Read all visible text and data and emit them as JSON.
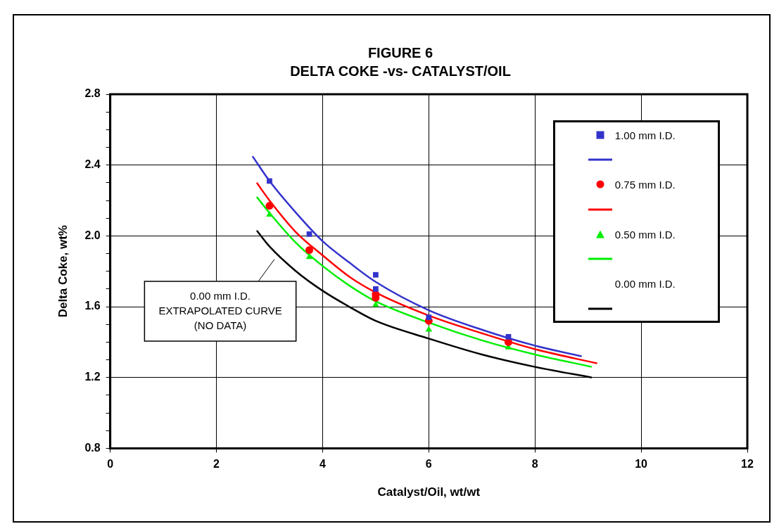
{
  "chart_data": {
    "type": "scatter",
    "title": "FIGURE 6",
    "subtitle": "DELTA COKE -vs- CATALYST/OIL",
    "xlabel": "Catalyst/Oil, wt/wt",
    "ylabel": "Delta Coke, wt%",
    "xlim": [
      0,
      12
    ],
    "xticks": [
      0,
      2,
      4,
      6,
      8,
      10,
      12
    ],
    "ylim": [
      0.8,
      2.8
    ],
    "yticks": [
      0.8,
      {
        "value": 0.9,
        "label": null
      },
      {
        "value": 1.0,
        "label": null
      },
      {
        "value": 1.1,
        "label": null
      },
      1.2,
      {
        "value": 1.3,
        "label": null
      },
      {
        "value": 1.4,
        "label": null
      },
      {
        "value": 1.5,
        "label": null
      },
      1.6,
      {
        "value": 1.7,
        "label": null
      },
      {
        "value": 1.8,
        "label": null
      },
      {
        "value": 1.9,
        "label": null
      },
      {
        "value": 2.0,
        "label": "2.0"
      },
      {
        "value": 2.1,
        "label": null
      },
      {
        "value": 2.2,
        "label": null
      },
      {
        "value": 2.3,
        "label": null
      },
      2.4,
      {
        "value": 2.5,
        "label": null
      },
      {
        "value": 2.6,
        "label": null
      },
      {
        "value": 2.7,
        "label": null
      },
      2.8
    ],
    "grid": true,
    "legend": "top right",
    "series": [
      {
        "name": "1.00 mm I.D.",
        "type": "scatter",
        "marker": "square",
        "color": "#3333cc",
        "x": [
          3,
          3.75,
          5,
          5,
          6,
          7.5
        ],
        "values": [
          2.31,
          2.01,
          1.78,
          1.7,
          1.54,
          1.43
        ]
      },
      {
        "type": "line",
        "marker": "none",
        "color": "#3333cc",
        "x": [
          2.68,
          3,
          3.5,
          4,
          4.5,
          5,
          6,
          7,
          8,
          8.88
        ],
        "values": [
          2.45,
          2.31,
          2.13,
          1.97,
          1.85,
          1.74,
          1.58,
          1.47,
          1.38,
          1.32
        ]
      },
      {
        "name": "0.75 mm I.D.",
        "type": "scatter",
        "marker": "circle",
        "color": "#ff0000",
        "x": [
          3,
          3.75,
          5,
          5,
          6,
          7.5
        ],
        "values": [
          2.17,
          1.92,
          1.67,
          1.65,
          1.52,
          1.4
        ]
      },
      {
        "type": "line",
        "marker": "none",
        "color": "#ff0000",
        "x": [
          2.76,
          3,
          3.5,
          4,
          4.5,
          5,
          6,
          7,
          8,
          9.17
        ],
        "values": [
          2.3,
          2.2,
          2.02,
          1.89,
          1.77,
          1.68,
          1.55,
          1.45,
          1.36,
          1.28
        ]
      },
      {
        "name": "0.50 mm I.D.",
        "type": "scatter",
        "marker": "triangle",
        "color": "#00ee00",
        "x": [
          3,
          3.75,
          5,
          6,
          7.5
        ],
        "values": [
          2.12,
          1.88,
          1.61,
          1.47,
          1.37
        ]
      },
      {
        "type": "line",
        "marker": "none",
        "color": "#00ee00",
        "x": [
          2.76,
          3,
          3.5,
          4,
          4.5,
          5,
          6,
          7,
          8,
          9.07
        ],
        "values": [
          2.22,
          2.13,
          1.96,
          1.83,
          1.72,
          1.63,
          1.51,
          1.41,
          1.33,
          1.26
        ]
      },
      {
        "name": "0.00 mm I.D.",
        "type": "line",
        "marker": "none",
        "color": "#000000",
        "x": [
          2.76,
          3,
          3.5,
          4,
          4.5,
          5,
          6,
          7,
          8,
          9.07
        ],
        "values": [
          2.03,
          1.94,
          1.8,
          1.69,
          1.6,
          1.52,
          1.42,
          1.33,
          1.26,
          1.2
        ]
      }
    ],
    "annotations": [
      {
        "text": "0.00 mm I.D.\nEXTRAPOLATED CURVE\n(NO DATA)",
        "x": 3.12,
        "y": 1.88
      }
    ]
  }
}
